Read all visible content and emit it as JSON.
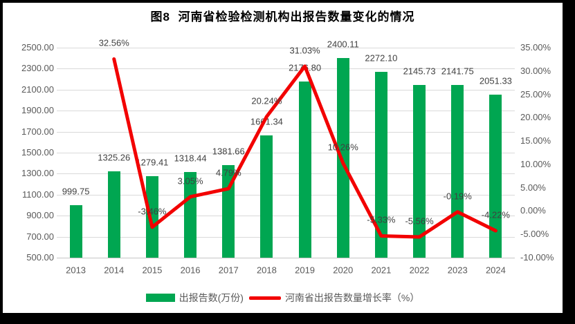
{
  "chart_data": {
    "type": "bar+line",
    "title": "图8  河南省检验检测机构出报告数量变化的情况",
    "categories": [
      "2013",
      "2014",
      "2015",
      "2016",
      "2017",
      "2018",
      "2019",
      "2020",
      "2021",
      "2022",
      "2023",
      "2024"
    ],
    "series": [
      {
        "name": "出报告数(万份)",
        "type": "bar",
        "axis": "left",
        "values": [
          999.75,
          1325.26,
          1279.41,
          1318.44,
          1381.66,
          1661.34,
          2176.8,
          2400.11,
          2272.1,
          2145.73,
          2141.75,
          2051.33
        ],
        "labels": [
          "999.75",
          "1325.26",
          "1279.41",
          "1318.44",
          "1381.66",
          "1661.34",
          "2176.80",
          "2400.11",
          "2272.10",
          "2145.73",
          "2141.75",
          "2051.33"
        ]
      },
      {
        "name": "河南省出报告数量增长率（%）",
        "type": "line",
        "axis": "right",
        "values": [
          null,
          32.56,
          -3.46,
          3.05,
          4.79,
          20.24,
          31.03,
          10.26,
          -5.33,
          -5.56,
          -0.19,
          -4.22
        ],
        "labels": [
          null,
          "32.56%",
          "-3.46%",
          "3.05%",
          "4.79%",
          "20.24%",
          "31.03%",
          "10.26%",
          "-5.33%",
          "-5.56%",
          "-0.19%",
          "-4.22%"
        ]
      }
    ],
    "left_axis": {
      "min": 500,
      "max": 2500,
      "step": 200,
      "ticks": [
        "2500.00",
        "2300.00",
        "2100.00",
        "1900.00",
        "1700.00",
        "1500.00",
        "1300.00",
        "1100.00",
        "900.00",
        "700.00",
        "500.00"
      ]
    },
    "right_axis": {
      "min": -10,
      "max": 35,
      "step": 5,
      "ticks": [
        "35.00%",
        "30.00%",
        "25.00%",
        "20.00%",
        "15.00%",
        "10.00%",
        "5.00%",
        "0.00%",
        "-5.00%",
        "-10.00%"
      ]
    },
    "grid": true,
    "legend_position": "bottom"
  },
  "legend": {
    "bar_label": "出报告数(万份)",
    "line_label": "河南省出报告数量增长率（%）"
  },
  "colors": {
    "bar": "#00a651",
    "line": "#f20000",
    "gridline": "#d9d9d9",
    "axis_line": "#c6c6c6",
    "tick_text": "#595959",
    "data_label_text": "#404040",
    "title_text": "#000000",
    "frame_border": "#000000"
  }
}
